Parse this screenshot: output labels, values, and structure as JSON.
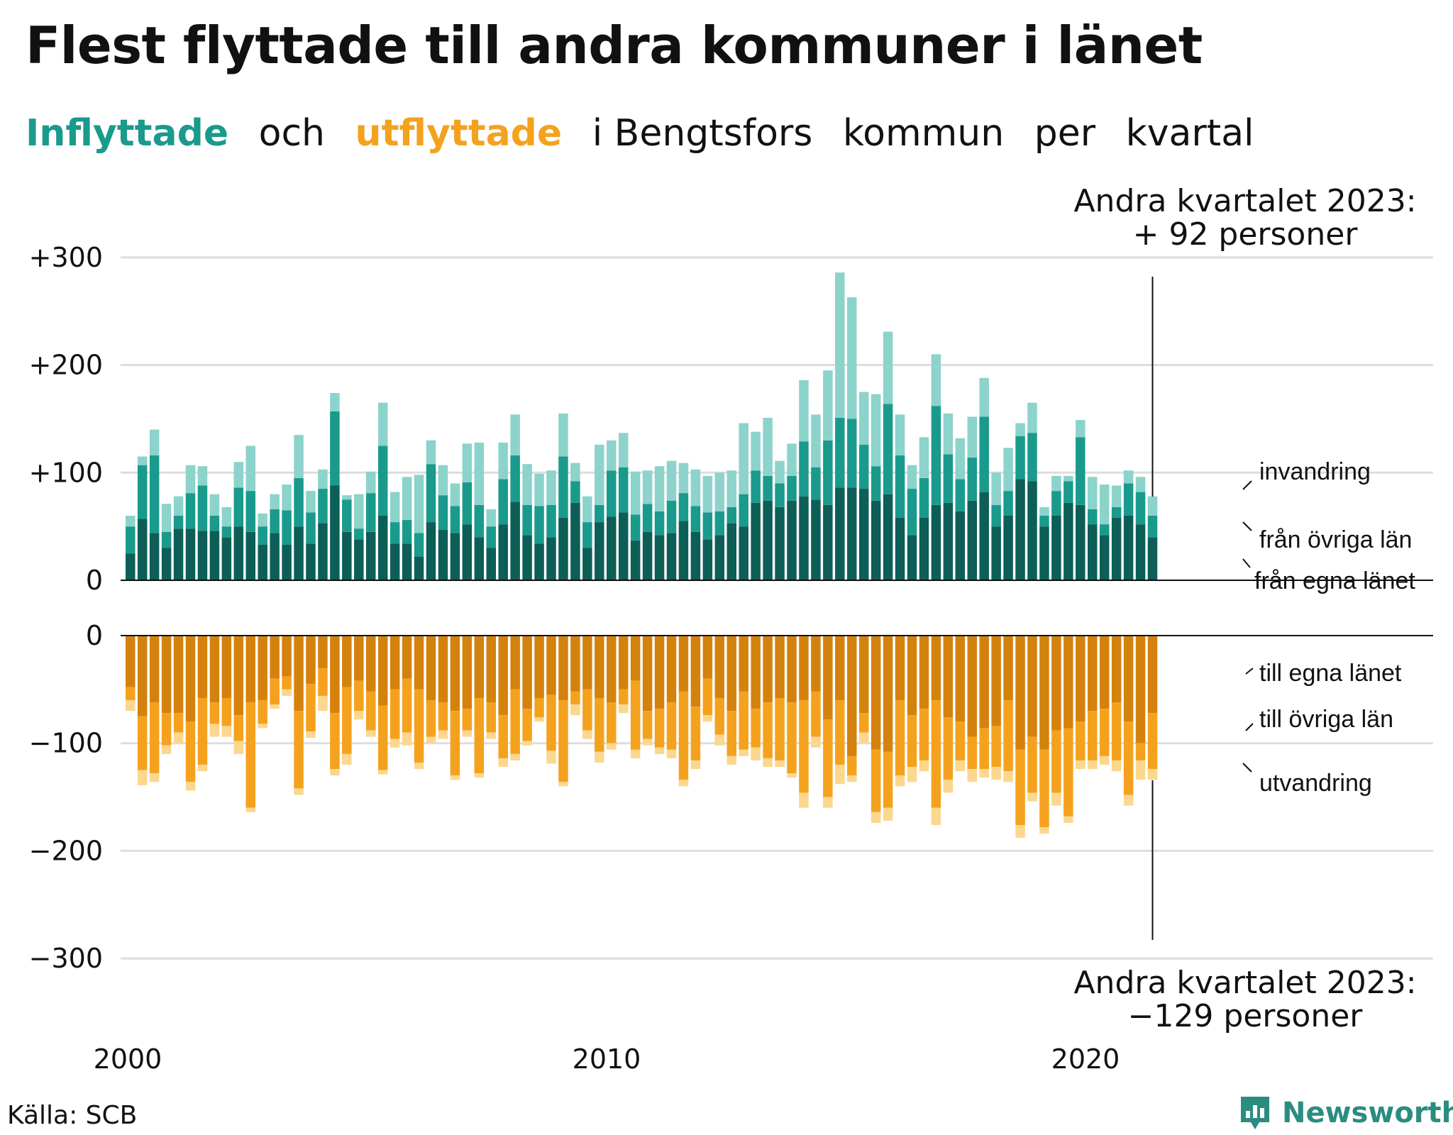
{
  "title": "Flest flyttade till andra kommuner i länet",
  "subtitle": {
    "inflyttade": "Inflyttade",
    "och": "och",
    "utflyttade": "utflyttade",
    "rest_1": "i Bengtsfors",
    "rest_2": "kommun",
    "rest_3": "per",
    "rest_4": "kvartal"
  },
  "source": "Källa: SCB",
  "brand": "Newsworthy",
  "colors": {
    "in_lan": "#0d5e57",
    "in_ovriga": "#1a9a8c",
    "in_invandring": "#8cd3cb",
    "out_lan": "#d4820e",
    "out_ovriga": "#f4a21e",
    "out_utvandring": "#fbd78f",
    "grid": "#dddddd"
  },
  "chart_data": {
    "type": "bar",
    "stacked": true,
    "x_start": "2000 Q1",
    "x_ticks": [
      "2000",
      "2010",
      "2020"
    ],
    "y_ticks_top": [
      "+300",
      "+200",
      "+100",
      "0"
    ],
    "y_ticks_bottom": [
      "0",
      "−100",
      "−200",
      "−300"
    ],
    "ylim_top": [
      0,
      300
    ],
    "ylim_bottom": [
      -300,
      0
    ],
    "annotation_top": [
      "Andra kvartalet 2023:",
      "+ 92 personer"
    ],
    "annotation_bottom": [
      "Andra kvartalet 2023:",
      "−129 personer"
    ],
    "labels_in": [
      "invandring",
      "från övriga län",
      "från egna länet"
    ],
    "labels_out": [
      "till egna länet",
      "till övriga län",
      "utvandring"
    ],
    "inflyttade": {
      "fran_egna_lanet": [
        25,
        57,
        44,
        30,
        48,
        48,
        46,
        46,
        40,
        50,
        45,
        33,
        44,
        33,
        50,
        34,
        53,
        88,
        45,
        38,
        45,
        60,
        34,
        34,
        22,
        54,
        47,
        44,
        52,
        40,
        30,
        52,
        73,
        42,
        34,
        40,
        58,
        72,
        30,
        54,
        59,
        63,
        37,
        45,
        42,
        44,
        55,
        45,
        38,
        42,
        53,
        50,
        72,
        74,
        68,
        74,
        78,
        75,
        70,
        86,
        86,
        85,
        74,
        80,
        58,
        42,
        58,
        70,
        72,
        64,
        74,
        82,
        50,
        60,
        94,
        92,
        50,
        60,
        72,
        70,
        52,
        42,
        58,
        60,
        52,
        40
      ],
      "fran_ovriga_lan": [
        25,
        50,
        72,
        15,
        12,
        33,
        42,
        14,
        10,
        36,
        38,
        17,
        22,
        32,
        45,
        29,
        32,
        69,
        30,
        10,
        36,
        65,
        20,
        22,
        22,
        54,
        32,
        25,
        39,
        30,
        20,
        42,
        43,
        28,
        35,
        30,
        57,
        20,
        24,
        16,
        43,
        42,
        24,
        26,
        22,
        30,
        26,
        24,
        25,
        22,
        15,
        30,
        30,
        23,
        22,
        23,
        51,
        30,
        60,
        65,
        64,
        41,
        32,
        84,
        58,
        43,
        37,
        92,
        45,
        30,
        40,
        70,
        20,
        23,
        40,
        45,
        10,
        23,
        20,
        63,
        14,
        10,
        10,
        30,
        30,
        20
      ],
      "invandring": [
        10,
        8,
        24,
        26,
        18,
        26,
        18,
        20,
        18,
        24,
        42,
        12,
        14,
        24,
        40,
        20,
        18,
        17,
        4,
        32,
        20,
        40,
        28,
        40,
        54,
        22,
        28,
        21,
        36,
        58,
        16,
        34,
        38,
        38,
        30,
        32,
        40,
        17,
        24,
        56,
        28,
        32,
        40,
        31,
        42,
        37,
        28,
        34,
        34,
        36,
        34,
        66,
        36,
        54,
        21,
        30,
        57,
        49,
        65,
        135,
        113,
        49,
        67,
        67,
        38,
        22,
        38,
        48,
        38,
        38,
        38,
        36,
        30,
        40,
        12,
        28,
        8,
        14,
        5,
        16,
        30,
        37,
        20,
        12,
        14,
        18
      ],
      "utvandring": [
        6,
        16,
        5,
        13,
        12,
        11,
        6,
        23,
        17,
        16,
        11,
        7,
        8,
        10,
        14,
        10,
        7,
        7,
        6,
        10,
        12,
        17,
        4,
        5,
        12,
        2,
        14,
        9,
        8,
        5,
        8,
        7,
        10,
        8,
        6,
        8,
        12,
        10,
        11,
        3,
        13,
        12,
        14,
        5,
        7,
        10,
        8,
        5,
        4,
        10,
        7,
        15,
        8,
        10,
        7,
        10,
        10,
        12,
        22,
        14,
        11,
        11,
        11,
        12,
        16,
        8,
        4,
        8,
        10,
        5,
        7,
        4,
        10,
        8,
        8,
        5,
        8,
        8,
        2,
        1,
        7,
        10,
        14,
        10,
        10,
        18
      ],
      "flag": "unused"
    },
    "utflyttade": {
      "till_egna_lanet": [
        48,
        75,
        62,
        72,
        72,
        80,
        58,
        62,
        58,
        74,
        62,
        60,
        40,
        38,
        70,
        45,
        30,
        72,
        48,
        42,
        52,
        65,
        50,
        40,
        50,
        60,
        62,
        70,
        68,
        58,
        62,
        74,
        50,
        68,
        58,
        55,
        60,
        52,
        50,
        58,
        62,
        50,
        42,
        70,
        68,
        62,
        52,
        66,
        40,
        58,
        70,
        52,
        68,
        62,
        58,
        62,
        60,
        52,
        78,
        60,
        112,
        72,
        106,
        108,
        60,
        74,
        68,
        60,
        76,
        80,
        94,
        86,
        84,
        60,
        106,
        94,
        106,
        88,
        86,
        80,
        70,
        68,
        62,
        80,
        100,
        72
      ],
      "till_ovriga_lan": [
        12,
        50,
        66,
        30,
        18,
        56,
        62,
        20,
        26,
        24,
        98,
        22,
        24,
        12,
        72,
        44,
        26,
        52,
        62,
        28,
        36,
        60,
        46,
        50,
        68,
        34,
        26,
        60,
        20,
        70,
        28,
        40,
        60,
        30,
        18,
        52,
        76,
        12,
        38,
        50,
        38,
        14,
        64,
        26,
        36,
        44,
        82,
        50,
        34,
        34,
        42,
        54,
        36,
        52,
        58,
        66,
        86,
        42,
        72,
        60,
        18,
        18,
        58,
        52,
        70,
        48,
        48,
        100,
        58,
        36,
        30,
        38,
        38,
        66,
        70,
        52,
        72,
        58,
        82,
        36,
        46,
        44,
        54,
        68,
        16,
        52
      ],
      "utvandring_out": [
        10,
        14,
        8,
        8,
        10,
        8,
        6,
        12,
        10,
        12,
        4,
        4,
        4,
        6,
        6,
        6,
        14,
        6,
        10,
        8,
        6,
        4,
        8,
        12,
        6,
        6,
        8,
        4,
        6,
        4,
        6,
        8,
        6,
        4,
        4,
        12,
        4,
        10,
        8,
        10,
        6,
        8,
        8,
        6,
        6,
        8,
        6,
        8,
        6,
        10,
        8,
        6,
        12,
        8,
        6,
        4,
        14,
        10,
        10,
        18,
        6,
        10,
        10,
        12,
        10,
        14,
        10,
        16,
        12,
        10,
        12,
        8,
        12,
        10,
        12,
        8,
        6,
        12,
        6,
        8,
        8,
        8,
        10,
        10,
        18,
        10
      ],
      "flag": "unused"
    }
  }
}
